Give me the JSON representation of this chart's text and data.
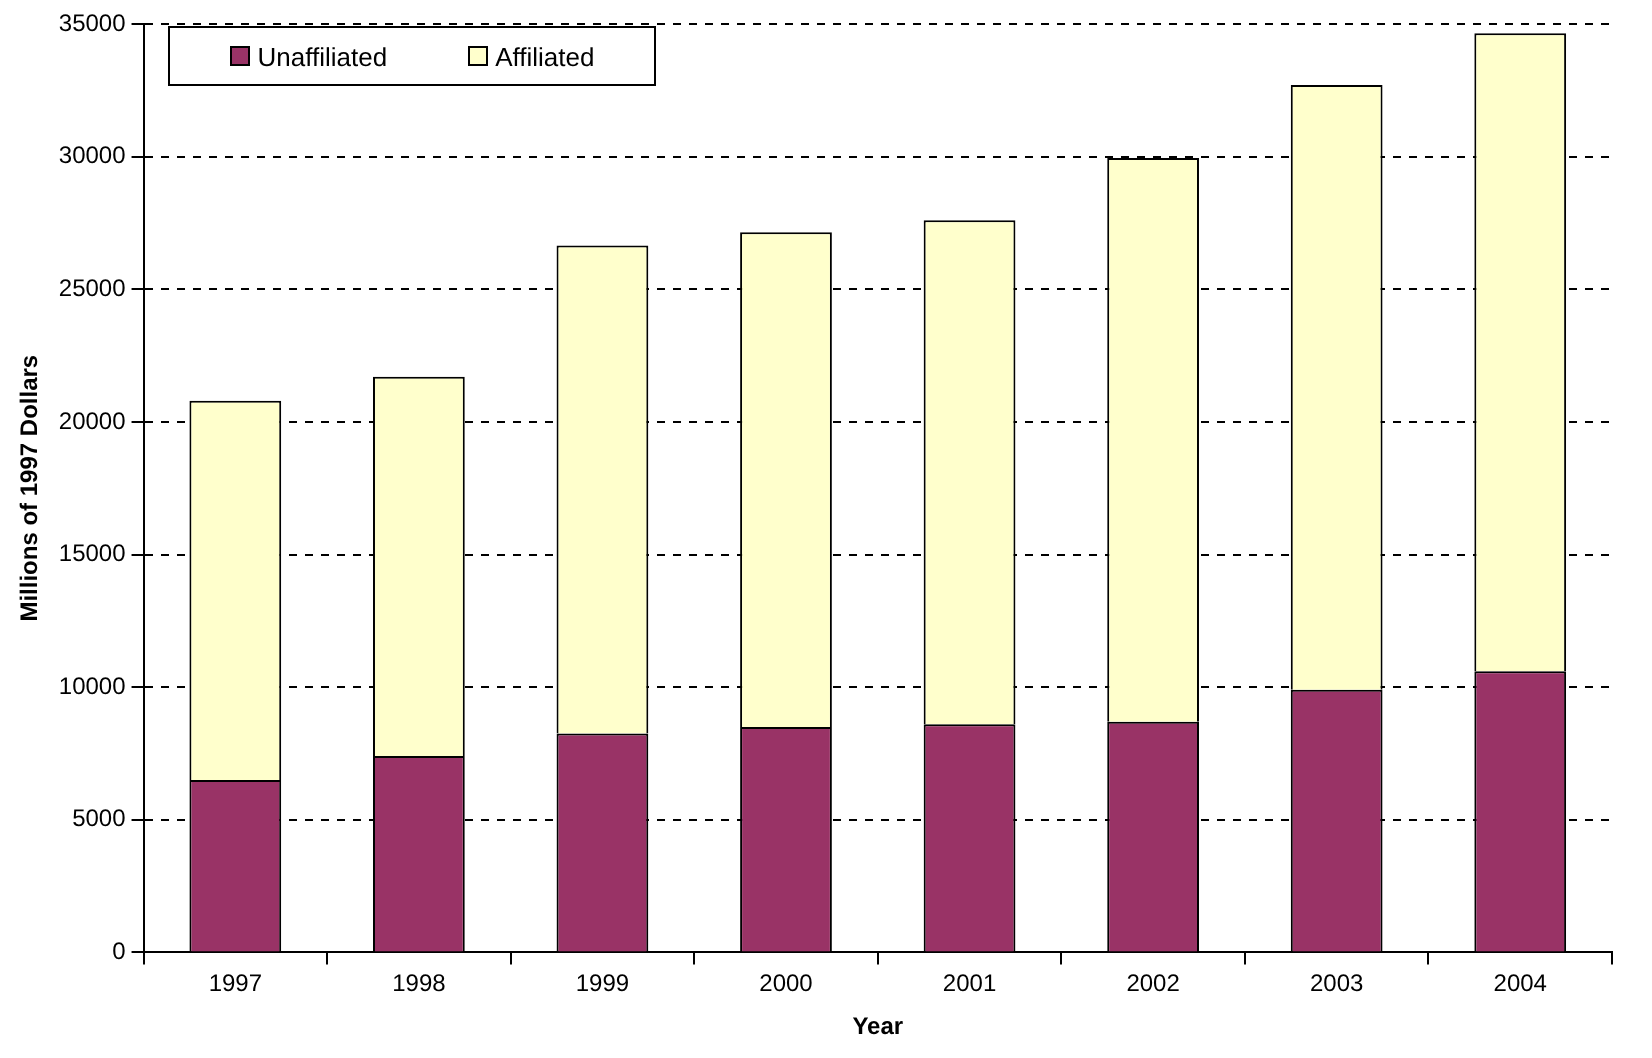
{
  "chart_data": {
    "type": "bar",
    "stacked": true,
    "xlabel": "Year",
    "ylabel": "Millions of 1997 Dollars",
    "categories": [
      "1997",
      "1998",
      "1999",
      "2000",
      "2001",
      "2002",
      "2003",
      "2004"
    ],
    "series": [
      {
        "name": "Unaffiliated",
        "color": "#993366",
        "values": [
          6500,
          7400,
          8250,
          8500,
          8600,
          8700,
          9900,
          10600
        ]
      },
      {
        "name": "Affiliated",
        "color": "#ffffcc",
        "values": [
          14300,
          14300,
          18400,
          18650,
          19000,
          21250,
          22800,
          24050
        ]
      }
    ],
    "ylim": [
      0,
      35000
    ],
    "yticks": [
      0,
      5000,
      10000,
      15000,
      20000,
      25000,
      30000,
      35000
    ],
    "grid": "y",
    "legend": "top left"
  }
}
